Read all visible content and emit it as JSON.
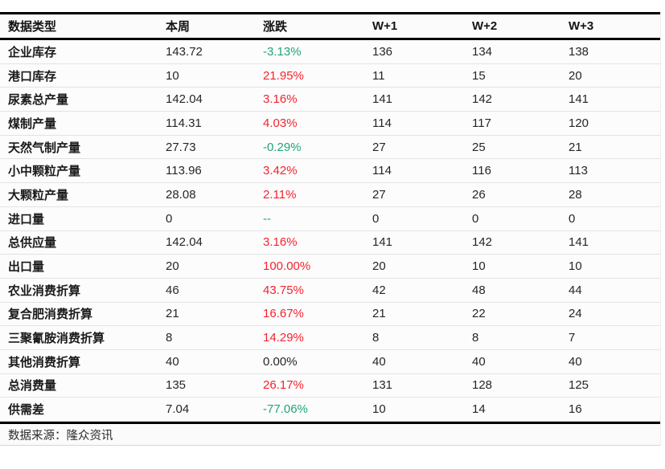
{
  "colors": {
    "up": "#f5232e",
    "down": "#21a675",
    "neutral": "#262626"
  },
  "table": {
    "columns": [
      "数据类型",
      "本周",
      "涨跌",
      "W+1",
      "W+2",
      "W+3"
    ],
    "rows": [
      {
        "label": "企业库存",
        "week": "143.72",
        "change": "-3.13%",
        "change_color": "green",
        "w1": "136",
        "w2": "134",
        "w3": "138"
      },
      {
        "label": "港口库存",
        "week": "10",
        "change": "21.95%",
        "change_color": "red",
        "w1": "11",
        "w2": "15",
        "w3": "20"
      },
      {
        "label": "尿素总产量",
        "week": "142.04",
        "change": "3.16%",
        "change_color": "red",
        "w1": "141",
        "w2": "142",
        "w3": "141"
      },
      {
        "label": "煤制产量",
        "week": "114.31",
        "change": "4.03%",
        "change_color": "red",
        "w1": "114",
        "w2": "117",
        "w3": "120"
      },
      {
        "label": "天然气制产量",
        "week": "27.73",
        "change": "-0.29%",
        "change_color": "green",
        "w1": "27",
        "w2": "25",
        "w3": "21"
      },
      {
        "label": "小中颗粒产量",
        "week": "113.96",
        "change": "3.42%",
        "change_color": "red",
        "w1": "114",
        "w2": "116",
        "w3": "113"
      },
      {
        "label": "大颗粒产量",
        "week": "28.08",
        "change": "2.11%",
        "change_color": "red",
        "w1": "27",
        "w2": "26",
        "w3": "28"
      },
      {
        "label": "进口量",
        "week": "0",
        "change": "--",
        "change_color": "green",
        "w1": "0",
        "w2": "0",
        "w3": "0"
      },
      {
        "label": "总供应量",
        "week": "142.04",
        "change": "3.16%",
        "change_color": "red",
        "w1": "141",
        "w2": "142",
        "w3": "141"
      },
      {
        "label": "出口量",
        "week": "20",
        "change": "100.00%",
        "change_color": "red",
        "w1": "20",
        "w2": "10",
        "w3": "10"
      },
      {
        "label": "农业消费折算",
        "week": "46",
        "change": "43.75%",
        "change_color": "red",
        "w1": "42",
        "w2": "48",
        "w3": "44"
      },
      {
        "label": "复合肥消费折算",
        "week": "21",
        "change": "16.67%",
        "change_color": "red",
        "w1": "21",
        "w2": "22",
        "w3": "24"
      },
      {
        "label": "三聚氰胺消费折算",
        "week": "8",
        "change": "14.29%",
        "change_color": "red",
        "w1": "8",
        "w2": "8",
        "w3": "7"
      },
      {
        "label": "其他消费折算",
        "week": "40",
        "change": "0.00%",
        "change_color": "black",
        "w1": "40",
        "w2": "40",
        "w3": "40"
      },
      {
        "label": "总消费量",
        "week": "135",
        "change": "26.17%",
        "change_color": "red",
        "w1": "131",
        "w2": "128",
        "w3": "125"
      },
      {
        "label": "供需差",
        "week": "7.04",
        "change": "-77.06%",
        "change_color": "green",
        "w1": "10",
        "w2": "14",
        "w3": "16"
      }
    ],
    "source": "数据来源：隆众资讯"
  }
}
